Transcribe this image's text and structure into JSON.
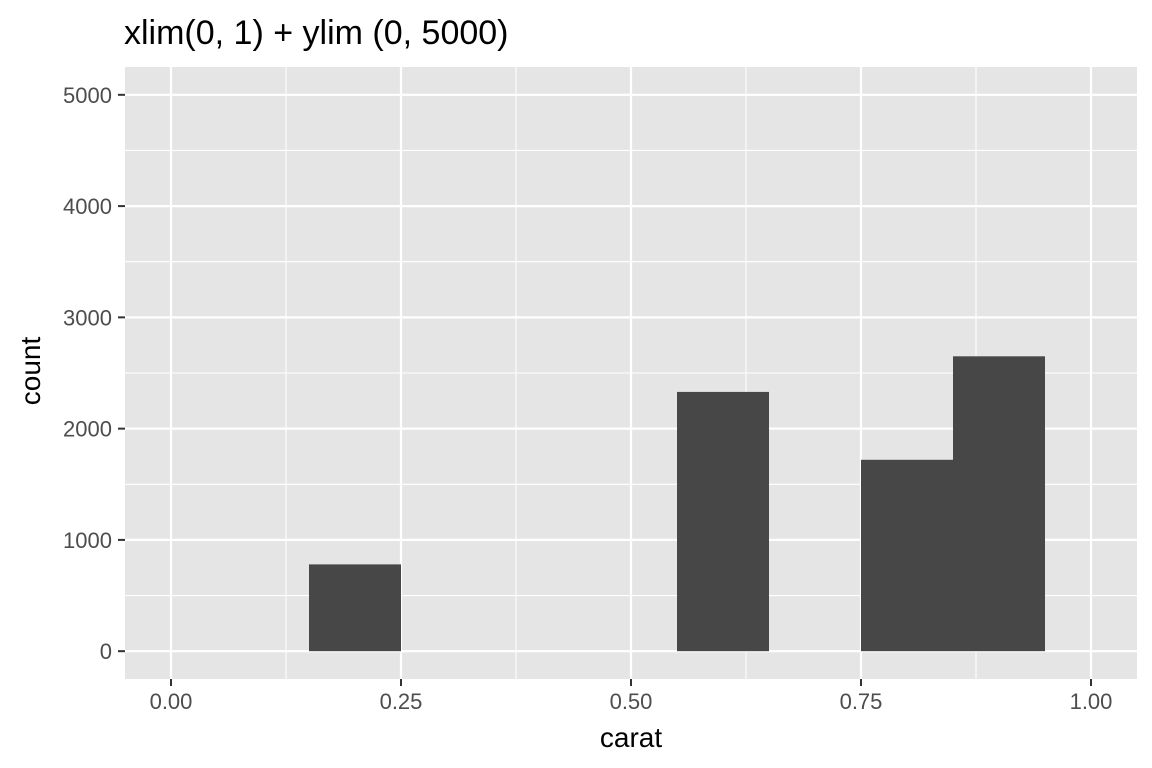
{
  "chart_data": {
    "type": "bar",
    "title": "xlim(0, 1) + ylim (0, 5000)",
    "xlabel": "carat",
    "ylabel": "count",
    "xlim": [
      0,
      1
    ],
    "ylim": [
      0,
      5000
    ],
    "x_ticks": [
      0,
      0.25,
      0.5,
      0.75,
      1
    ],
    "x_tick_labels": [
      "0.00",
      "0.25",
      "0.50",
      "0.75",
      "1.00"
    ],
    "y_ticks": [
      0,
      1000,
      2000,
      3000,
      4000,
      5000
    ],
    "y_tick_labels": [
      "0",
      "1000",
      "2000",
      "3000",
      "4000",
      "5000"
    ],
    "bins": [
      {
        "x0": 0.15,
        "x1": 0.25,
        "count": 780
      },
      {
        "x0": 0.55,
        "x1": 0.65,
        "count": 2330
      },
      {
        "x0": 0.75,
        "x1": 0.85,
        "count": 1720
      },
      {
        "x0": 0.85,
        "x1": 0.95,
        "count": 2650
      }
    ],
    "grid": true,
    "legend": "none",
    "colors": {
      "panel_background": "#e5e5e5",
      "grid": "#ffffff",
      "bar_fill": "#474747",
      "tick_text": "#4d4d4d",
      "tick_mark": "#333333"
    }
  }
}
